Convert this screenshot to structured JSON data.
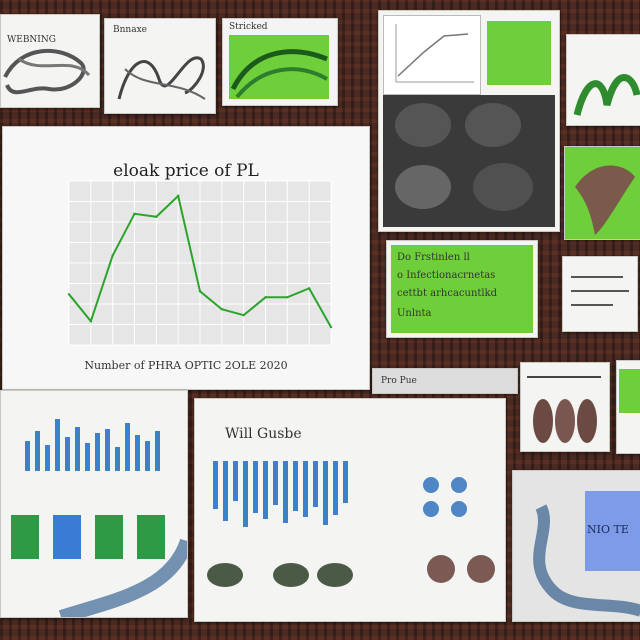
{
  "main_chart": {
    "title": "eloak price of PL",
    "xlabel": "Number of PHRA OPTIC 2OLE 2020"
  },
  "panels": {
    "top_left_caption": "WEBNING",
    "top_mid_caption": "Bnnaxe",
    "top_green_caption": "Stricked",
    "green_note_line1": "Do Frstinlen ll",
    "green_note_line2": "o Infectionacrnetas",
    "green_note_line3": "cettbt arhcacuntlkd",
    "green_note_line4": "Unlnta",
    "bars_center_heading": "Will Gusbe",
    "strip_label": "Pro Pue",
    "blue_screen_text": "NIO TE"
  },
  "chart_data": {
    "type": "line",
    "title": "eloak price of PL",
    "xlabel": "Number of PHRA OPTIC 2OLE 2020",
    "ylabel": "",
    "x": [
      0,
      1,
      2,
      3,
      4,
      5,
      6,
      7,
      8,
      9,
      10,
      11,
      12
    ],
    "series": [
      {
        "values": [
          34,
          16,
          60,
          88,
          86,
          100,
          36,
          24,
          20,
          32,
          32,
          38,
          12
        ]
      }
    ],
    "ylim": [
      0,
      110
    ],
    "grid": true,
    "colors": {
      "line": "#2aa52a"
    }
  }
}
